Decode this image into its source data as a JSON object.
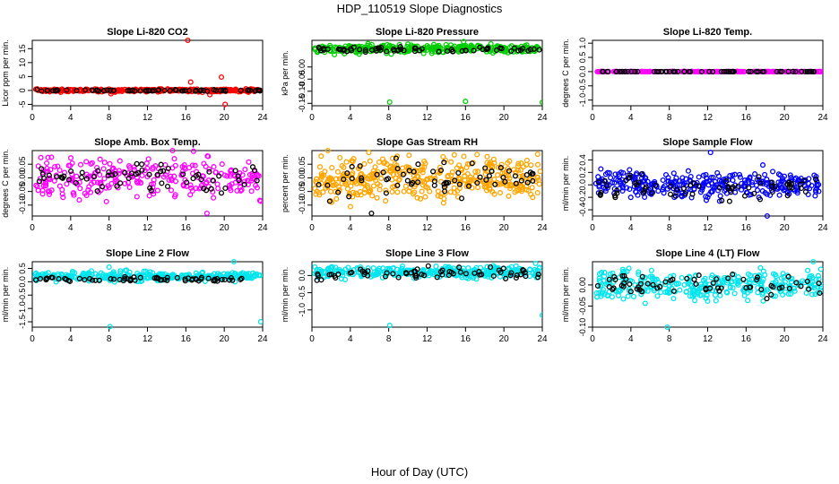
{
  "figure": {
    "title": "HDP_110519  Slope Diagnostics",
    "xlabel": "Hour of Day (UTC)"
  },
  "chart_data": [
    {
      "type": "scatter",
      "title": "Slope Li-820 CO2",
      "ylabel": "Licor ppm per min.",
      "xlim": [
        0,
        24
      ],
      "ylim": [
        -5.5,
        18
      ],
      "xticks": [
        0,
        4,
        8,
        12,
        16,
        20,
        24
      ],
      "yticks": [
        -5,
        0,
        5,
        10,
        15
      ],
      "color": "#ff0000",
      "series": [
        {
          "name": "colored",
          "base": 0,
          "spread": 0.35,
          "density": 5,
          "outliers": [
            [
              16.2,
              18
            ],
            [
              16.5,
              3
            ],
            [
              19.7,
              4.8
            ],
            [
              20.1,
              -5
            ],
            [
              8.2,
              -1.2
            ],
            [
              18.5,
              -1.5
            ]
          ]
        },
        {
          "name": "black",
          "base": 0,
          "spread": 0.2,
          "density": 1
        }
      ]
    },
    {
      "type": "scatter",
      "title": "Slope Li-820 Pressure",
      "ylabel": "kPa per min.",
      "xlim": [
        0,
        24
      ],
      "ylim": [
        -0.16,
        0.11
      ],
      "xticks": [
        0,
        4,
        8,
        12,
        16,
        20,
        24
      ],
      "yticks": [
        -0.15,
        -0.1,
        -0.05,
        0.0
      ],
      "color": "#00cc00",
      "series": [
        {
          "name": "colored",
          "base": 0.075,
          "spread": 0.012,
          "density": 5,
          "outliers": [
            [
              8.1,
              -0.145
            ],
            [
              16,
              -0.142
            ],
            [
              24,
              -0.146
            ],
            [
              15.8,
              0.105
            ]
          ]
        },
        {
          "name": "black",
          "base": 0.072,
          "spread": 0.008,
          "density": 1
        }
      ]
    },
    {
      "type": "scatter",
      "title": "Slope Li-820 Temp.",
      "ylabel": "degrees C per min.",
      "xlim": [
        0,
        24
      ],
      "ylim": [
        -1.2,
        1.1
      ],
      "xticks": [
        0,
        4,
        8,
        12,
        16,
        20,
        24
      ],
      "yticks": [
        -1.0,
        -0.5,
        0.0,
        0.5,
        1.0
      ],
      "color": "#ff00ff",
      "series": [
        {
          "name": "colored",
          "base": 0,
          "spread": 0.005,
          "density": 4,
          "outliers": []
        },
        {
          "name": "black",
          "base": 0,
          "spread": 0.003,
          "density": 1
        }
      ]
    },
    {
      "type": "scatter",
      "title": "Slope Amb. Box Temp.",
      "ylabel": "degrees C per min.",
      "xlim": [
        0,
        24
      ],
      "ylim": [
        -0.14,
        0.1
      ],
      "xticks": [
        0,
        4,
        8,
        12,
        16,
        20,
        24
      ],
      "yticks": [
        -0.1,
        -0.05,
        0.0,
        0.05
      ],
      "color": "#ff00ff",
      "series": [
        {
          "name": "colored",
          "base": 0,
          "spread": 0.05,
          "density": 4,
          "outliers": [
            [
              18.2,
              -0.13
            ]
          ]
        },
        {
          "name": "black",
          "base": 0,
          "spread": 0.04,
          "density": 1
        }
      ]
    },
    {
      "type": "scatter",
      "title": "Slope Gas Stream RH",
      "ylabel": "percent per min.",
      "xlim": [
        0,
        24
      ],
      "ylim": [
        -0.14,
        0.1
      ],
      "xticks": [
        0,
        4,
        8,
        12,
        16,
        20,
        24
      ],
      "yticks": [
        -0.1,
        -0.05,
        0.0,
        0.05
      ],
      "color": "#ffa500",
      "series": [
        {
          "name": "colored",
          "base": 0,
          "spread": 0.055,
          "density": 6,
          "outliers": []
        },
        {
          "name": "black",
          "base": 0,
          "spread": 0.05,
          "density": 1,
          "outliers": [
            [
              6.2,
              -0.13
            ]
          ]
        }
      ]
    },
    {
      "type": "scatter",
      "title": "Slope Sample Flow",
      "ylabel": "ml/min per min.",
      "xlim": [
        0,
        24
      ],
      "ylim": [
        -0.5,
        0.55
      ],
      "xticks": [
        0,
        4,
        8,
        12,
        16,
        20,
        24
      ],
      "yticks": [
        -0.4,
        -0.2,
        0.0,
        0.2,
        0.4
      ],
      "color": "#0000ff",
      "series": [
        {
          "name": "colored",
          "base": 0,
          "spread": 0.15,
          "density": 5,
          "outliers": [
            [
              12.3,
              0.52
            ],
            [
              18.2,
              -0.5
            ],
            [
              12.0,
              -0.2
            ]
          ]
        },
        {
          "name": "black",
          "base": -0.05,
          "spread": 0.15,
          "density": 1
        }
      ]
    },
    {
      "type": "scatter",
      "title": "Slope Line 2 Flow",
      "ylabel": "ml/min per min.",
      "xlim": [
        0,
        24
      ],
      "ylim": [
        -1.7,
        0.75
      ],
      "xticks": [
        0,
        4,
        8,
        12,
        16,
        20,
        24
      ],
      "yticks": [
        -1.5,
        -1.0,
        -0.5,
        0.0,
        0.5
      ],
      "color": "#00e5ee",
      "series": [
        {
          "name": "colored",
          "base": 0.2,
          "spread": 0.12,
          "density": 5,
          "outliers": [
            [
              8.1,
              -1.68
            ],
            [
              23.8,
              -1.5
            ],
            [
              8.0,
              0.55
            ],
            [
              21.0,
              0.75
            ]
          ]
        },
        {
          "name": "black",
          "base": 0.1,
          "spread": 0.06,
          "density": 1
        }
      ]
    },
    {
      "type": "scatter",
      "title": "Slope Line 3 Flow",
      "ylabel": "ml/min per min.",
      "xlim": [
        0,
        24
      ],
      "ylim": [
        -1.5,
        0.4
      ],
      "xticks": [
        0,
        4,
        8,
        12,
        16,
        20,
        24
      ],
      "yticks": [
        -1.0,
        -0.5,
        0.0
      ],
      "color": "#00e5ee",
      "series": [
        {
          "name": "colored",
          "base": 0.1,
          "spread": 0.12,
          "density": 5,
          "outliers": [
            [
              8.1,
              -1.45
            ],
            [
              24,
              -1.15
            ],
            [
              23.3,
              0.35
            ]
          ]
        },
        {
          "name": "black",
          "base": 0.05,
          "spread": 0.12,
          "density": 1
        }
      ]
    },
    {
      "type": "scatter",
      "title": "Slope Line 4 (LT) Flow",
      "ylabel": "ml/min per min.",
      "xlim": [
        0,
        24
      ],
      "ylim": [
        -0.1,
        0.055
      ],
      "xticks": [
        0,
        4,
        8,
        12,
        16,
        20,
        24
      ],
      "yticks": [
        -0.1,
        -0.05,
        0.0
      ],
      "color": "#00e5ee",
      "series": [
        {
          "name": "colored",
          "base": 0,
          "spread": 0.025,
          "density": 5,
          "outliers": [
            [
              7.8,
              -0.1
            ],
            [
              23.0,
              0.055
            ]
          ]
        },
        {
          "name": "black",
          "base": 0,
          "spread": 0.02,
          "density": 1
        }
      ]
    }
  ]
}
